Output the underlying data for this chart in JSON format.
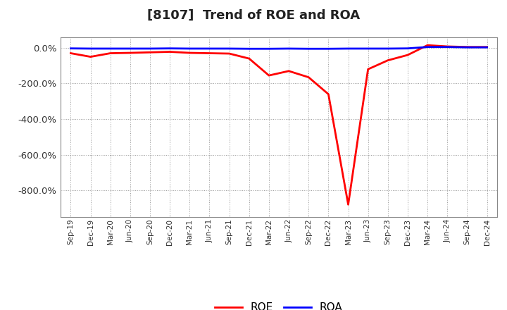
{
  "title": "[8107]  Trend of ROE and ROA",
  "title_fontsize": 13,
  "background_color": "#ffffff",
  "plot_bg_color": "#ffffff",
  "grid_color": "#999999",
  "roe_color": "#ff0000",
  "roa_color": "#0000ff",
  "line_width": 2.0,
  "xlabels": [
    "Sep-19",
    "Dec-19",
    "Mar-20",
    "Jun-20",
    "Sep-20",
    "Dec-20",
    "Mar-21",
    "Jun-21",
    "Sep-21",
    "Dec-21",
    "Mar-22",
    "Jun-22",
    "Sep-22",
    "Dec-22",
    "Mar-23",
    "Jun-23",
    "Sep-23",
    "Dec-23",
    "Mar-24",
    "Jun-24",
    "Sep-24",
    "Dec-24"
  ],
  "roe_values": [
    -30,
    -50,
    -30,
    -28,
    -25,
    -22,
    -28,
    -30,
    -32,
    -60,
    -155,
    -130,
    -165,
    -260,
    -880,
    -120,
    -70,
    -40,
    15,
    8,
    5,
    5
  ],
  "roa_values": [
    -3,
    -4,
    -4,
    -4,
    -4,
    -3,
    -4,
    -4,
    -4,
    -5,
    -5,
    -4,
    -5,
    -5,
    -4,
    -4,
    -4,
    -3,
    5,
    5,
    3,
    3
  ],
  "ylim": [
    -950,
    60
  ],
  "yticks": [
    0,
    -200,
    -400,
    -600,
    -800
  ],
  "legend_ncol": 2,
  "figsize": [
    7.2,
    4.4
  ],
  "dpi": 100
}
